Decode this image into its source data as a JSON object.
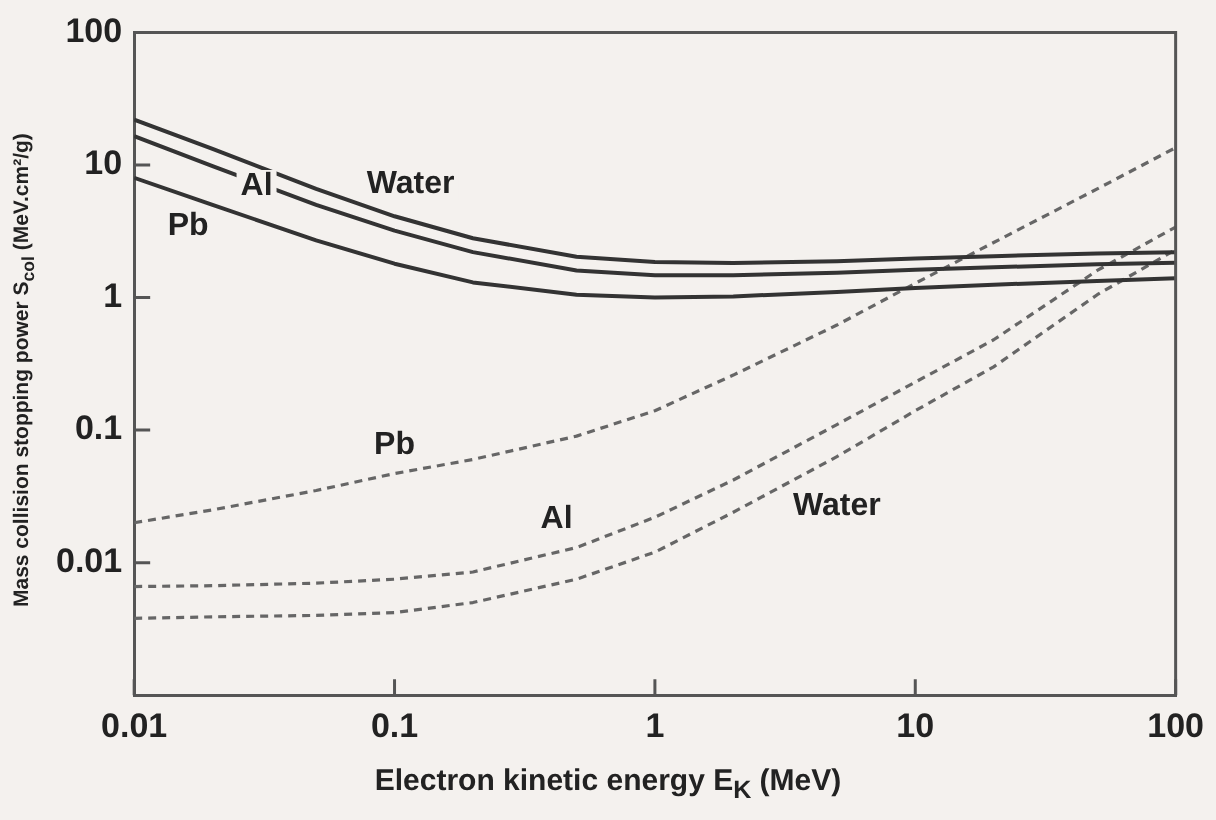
{
  "chart_data": {
    "type": "line",
    "xlabel": "Electron kinetic energy E$_{K}$ (MeV)",
    "ylabel": "Mass collision stopping power S$_{col}$ (MeV.cm²/g)",
    "log": "xy",
    "xlim": [
      0.01,
      100
    ],
    "xticks": [
      0.01,
      0.1,
      1,
      10,
      100
    ],
    "ylim": [
      0.001,
      100
    ],
    "yticks": [
      0.01,
      0.1,
      1,
      10,
      100
    ],
    "grid": false,
    "legend": false,
    "marker": "none",
    "x": [
      0.01,
      0.02,
      0.05,
      0.1,
      0.2,
      0.5,
      1,
      2,
      5,
      10,
      20,
      50,
      100
    ],
    "series": [
      {
        "name": "Water",
        "color": "#333333",
        "line_style": "solid",
        "values": [
          22,
          13.2,
          6.6,
          4.1,
          2.8,
          2.03,
          1.85,
          1.82,
          1.88,
          1.97,
          2.05,
          2.15,
          2.2
        ]
      },
      {
        "name": "Al",
        "color": "#333333",
        "line_style": "solid",
        "values": [
          16.5,
          9.8,
          5,
          3.2,
          2.2,
          1.6,
          1.47,
          1.47,
          1.54,
          1.62,
          1.69,
          1.78,
          1.83
        ]
      },
      {
        "name": "Pb",
        "color": "#333333",
        "line_style": "solid",
        "values": [
          8,
          5,
          2.7,
          1.8,
          1.3,
          1.05,
          1,
          1.02,
          1.1,
          1.18,
          1.25,
          1.33,
          1.4
        ]
      },
      {
        "name": "Pb",
        "color": "#666666",
        "line_style": "dashed",
        "values": [
          0.02,
          0.025,
          0.035,
          0.047,
          0.06,
          0.09,
          0.14,
          0.26,
          0.62,
          1.28,
          2.6,
          6.6,
          13.5
        ]
      },
      {
        "name": "Al",
        "color": "#666666",
        "line_style": "dashed",
        "values": [
          0.0066,
          0.0067,
          0.007,
          0.0075,
          0.0085,
          0.013,
          0.022,
          0.042,
          0.11,
          0.23,
          0.48,
          1.6,
          3.4
        ]
      },
      {
        "name": "Water",
        "color": "#666666",
        "line_style": "dashed",
        "values": [
          0.0038,
          0.0039,
          0.004,
          0.0042,
          0.005,
          0.0075,
          0.012,
          0.024,
          0.063,
          0.14,
          0.3,
          1.05,
          2.3
        ]
      }
    ]
  }
}
